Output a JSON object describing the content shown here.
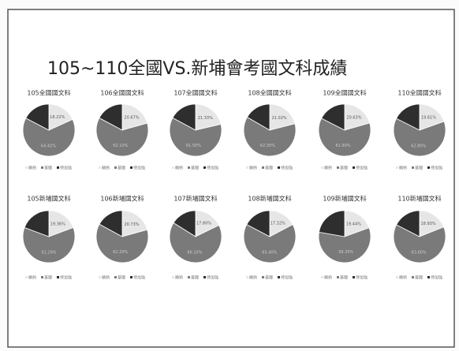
{
  "title": "105~110全國VS.新埔會考國文科成績",
  "chart_data": [
    {
      "type": "pie",
      "title": "105全國國文科",
      "categories": [
        "精熟",
        "基礎",
        "待加強"
      ],
      "colors": [
        "#e6e6e6",
        "#7a7a7a",
        "#2e2e2e"
      ],
      "values": [
        18.22,
        64.42,
        17.36
      ],
      "value_labels": [
        "18.22%",
        "64.42%",
        null
      ]
    },
    {
      "type": "pie",
      "title": "106全國國文科",
      "categories": [
        "精熟",
        "基礎",
        "待加強"
      ],
      "colors": [
        "#e6e6e6",
        "#7a7a7a",
        "#2e2e2e"
      ],
      "values": [
        20.67,
        62.1,
        17.23
      ],
      "value_labels": [
        "20.67%",
        "62.10%",
        null
      ]
    },
    {
      "type": "pie",
      "title": "107全國國文科",
      "categories": [
        "精熟",
        "基礎",
        "待加強"
      ],
      "colors": [
        "#e6e6e6",
        "#7a7a7a",
        "#2e2e2e"
      ],
      "values": [
        21.33,
        61.5,
        17.17
      ],
      "value_labels": [
        "21.33%",
        "61.50%",
        null
      ]
    },
    {
      "type": "pie",
      "title": "108全國國文科",
      "categories": [
        "精熟",
        "基礎",
        "待加強"
      ],
      "colors": [
        "#e6e6e6",
        "#7a7a7a",
        "#2e2e2e"
      ],
      "values": [
        21.02,
        62.3,
        16.68
      ],
      "value_labels": [
        "21.02%",
        "62.30%",
        null
      ]
    },
    {
      "type": "pie",
      "title": "109全國國文科",
      "categories": [
        "精熟",
        "基礎",
        "待加強"
      ],
      "colors": [
        "#e6e6e6",
        "#7a7a7a",
        "#2e2e2e"
      ],
      "values": [
        20.63,
        61.9,
        17.47
      ],
      "value_labels": [
        "20.63%",
        "61.90%",
        null
      ]
    },
    {
      "type": "pie",
      "title": "110全國國文科",
      "categories": [
        "精熟",
        "基礎",
        "待加強"
      ],
      "colors": [
        "#e6e6e6",
        "#7a7a7a",
        "#2e2e2e"
      ],
      "values": [
        19.61,
        62.8,
        17.59
      ],
      "value_labels": [
        "19.61%",
        "62.80%",
        null
      ]
    },
    {
      "type": "pie",
      "title": "105新埔國文科",
      "categories": [
        "精熟",
        "基礎",
        "待加強"
      ],
      "colors": [
        "#e6e6e6",
        "#7a7a7a",
        "#2e2e2e"
      ],
      "values": [
        19.36,
        61.29,
        19.35
      ],
      "value_labels": [
        "19.36%",
        "61.29%",
        null
      ]
    },
    {
      "type": "pie",
      "title": "106新埔國文科",
      "categories": [
        "精熟",
        "基礎",
        "待加強"
      ],
      "colors": [
        "#e6e6e6",
        "#7a7a7a",
        "#2e2e2e"
      ],
      "values": [
        20.73,
        62.2,
        17.07
      ],
      "value_labels": [
        "20.73%",
        "62.20%",
        null
      ]
    },
    {
      "type": "pie",
      "title": "107新埔國文科",
      "categories": [
        "精熟",
        "基礎",
        "待加強"
      ],
      "colors": [
        "#e6e6e6",
        "#7a7a7a",
        "#2e2e2e"
      ],
      "values": [
        17.8,
        66.1,
        16.1
      ],
      "value_labels": [
        "17.80%",
        "66.10%",
        null
      ]
    },
    {
      "type": "pie",
      "title": "108新埔國文科",
      "categories": [
        "精熟",
        "基礎",
        "待加強"
      ],
      "colors": [
        "#e6e6e6",
        "#7a7a7a",
        "#2e2e2e"
      ],
      "values": [
        17.32,
        65.4,
        17.28
      ],
      "value_labels": [
        "17.32%",
        "65.40%",
        null
      ]
    },
    {
      "type": "pie",
      "title": "109新埔國文科",
      "categories": [
        "精熟",
        "基礎",
        "待加強"
      ],
      "colors": [
        "#e6e6e6",
        "#7a7a7a",
        "#2e2e2e"
      ],
      "values": [
        19.44,
        58.3,
        22.26
      ],
      "value_labels": [
        "19.44%",
        "58.30%",
        null
      ]
    },
    {
      "type": "pie",
      "title": "110新埔國文科",
      "categories": [
        "精熟",
        "基礎",
        "待加強"
      ],
      "colors": [
        "#e6e6e6",
        "#7a7a7a",
        "#2e2e2e"
      ],
      "values": [
        18.93,
        63.6,
        17.47
      ],
      "value_labels": [
        "18.93%",
        "63.60%",
        null
      ]
    }
  ]
}
